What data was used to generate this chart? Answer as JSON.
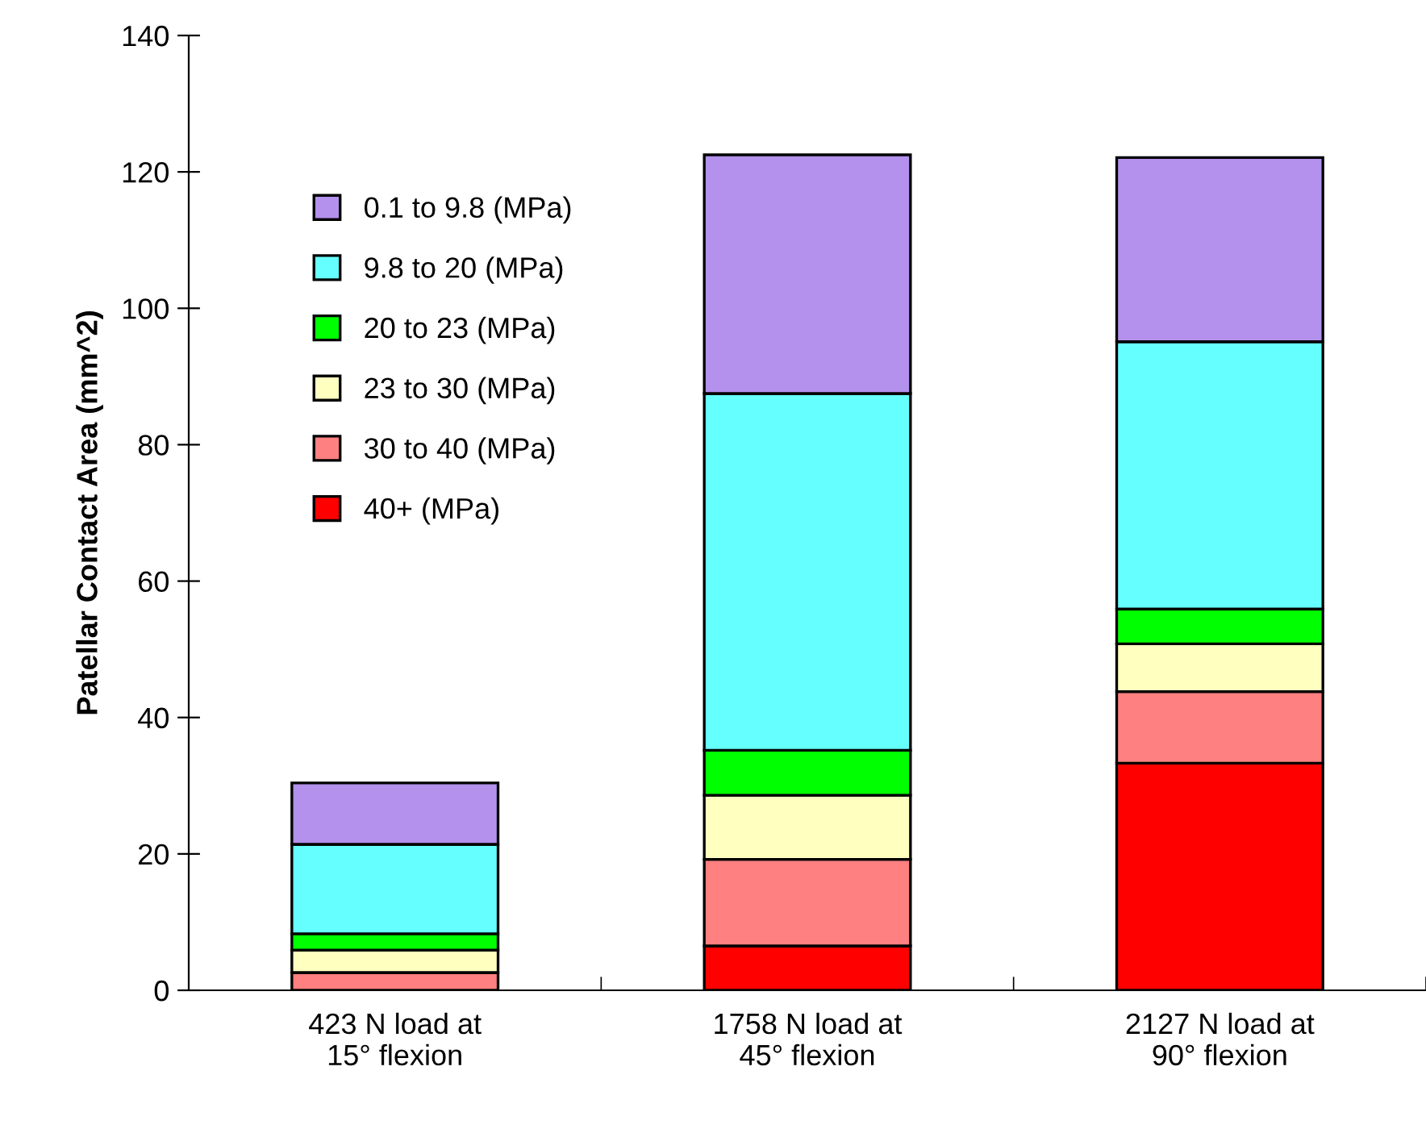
{
  "chart_data": {
    "type": "bar",
    "stacked": true,
    "ylabel": "Patellar Contact Area (mm^2)",
    "categories": [
      "423 N load at\n15° flexion",
      "1758 N load at\n45° flexion",
      "2127 N load at\n90° flexion"
    ],
    "series": [
      {
        "name": "40+ (MPa)",
        "color": "#ff0000",
        "values": [
          0,
          6.5,
          33.3
        ]
      },
      {
        "name": "30 to 40 (MPa)",
        "color": "#ff8080",
        "values": [
          2.6,
          12.7,
          10.5
        ]
      },
      {
        "name": "23 to 30 (MPa)",
        "color": "#ffffc0",
        "values": [
          3.3,
          9.4,
          7.0
        ]
      },
      {
        "name": "20 to 23 (MPa)",
        "color": "#00ff00",
        "values": [
          2.4,
          6.6,
          5.1
        ]
      },
      {
        "name": "9.8 to 20 (MPa)",
        "color": "#66ffff",
        "values": [
          13.1,
          52.3,
          39.2
        ]
      },
      {
        "name": "0.1 to 9.8 (MPa)",
        "color": "#b391ec",
        "values": [
          9.0,
          35.0,
          27.0
        ]
      }
    ],
    "ylim": [
      0,
      140
    ],
    "yticks": [
      0,
      20,
      40,
      60,
      80,
      100,
      120,
      140
    ],
    "grid": false,
    "legend": "top left"
  }
}
